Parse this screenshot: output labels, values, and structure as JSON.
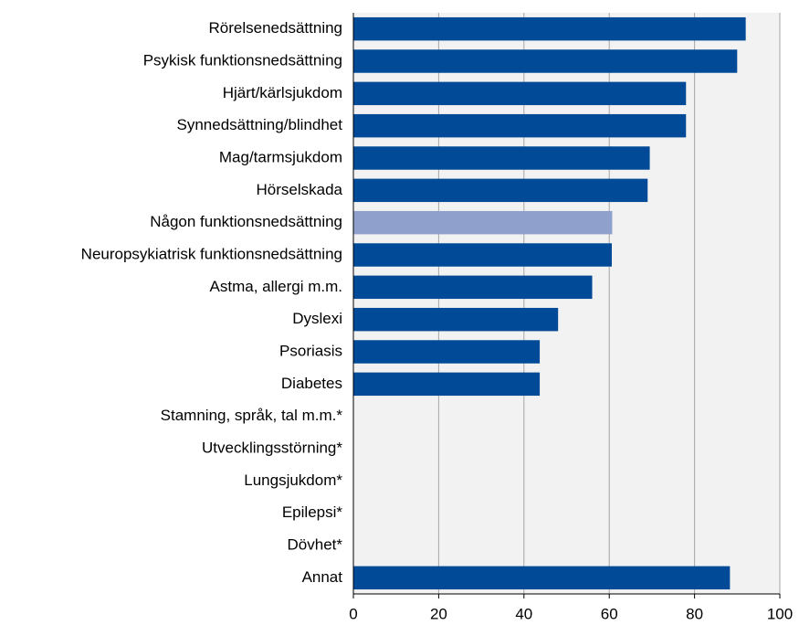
{
  "chart_data": {
    "type": "barh",
    "categories": [
      "Rörelsenedsättning",
      "Psykisk funktionsnedsättning",
      "Hjärt/kärlsjukdom",
      "Synnedsättning/blindhet",
      "Mag/tarmsjukdom",
      "Hörselskada",
      "Någon funktionsnedsättning",
      "Neuropsykiatrisk funktionsnedsättning",
      "Astma, allergi m.m.",
      "Dyslexi",
      "Psoriasis",
      "Diabetes",
      "Stamning, språk, tal m.m.*",
      "Utvecklingsstörning*",
      "Lungsjukdom*",
      "Epilepsi*",
      "Dövhet*",
      "Annat"
    ],
    "values": [
      92,
      90,
      78,
      78,
      69.5,
      69,
      60.7,
      60.6,
      56,
      48,
      43.7,
      43.7,
      null,
      null,
      null,
      null,
      null,
      88.3
    ],
    "colors": [
      "#004a98",
      "#004a98",
      "#004a98",
      "#004a98",
      "#004a98",
      "#004a98",
      "#8fa0cc",
      "#004a98",
      "#004a98",
      "#004a98",
      "#004a98",
      "#004a98",
      "#004a98",
      "#004a98",
      "#004a98",
      "#004a98",
      "#004a98",
      "#004a98"
    ],
    "xlim": [
      0,
      100
    ],
    "xticks": [
      0,
      20,
      40,
      60,
      80,
      100
    ],
    "grid": true
  }
}
